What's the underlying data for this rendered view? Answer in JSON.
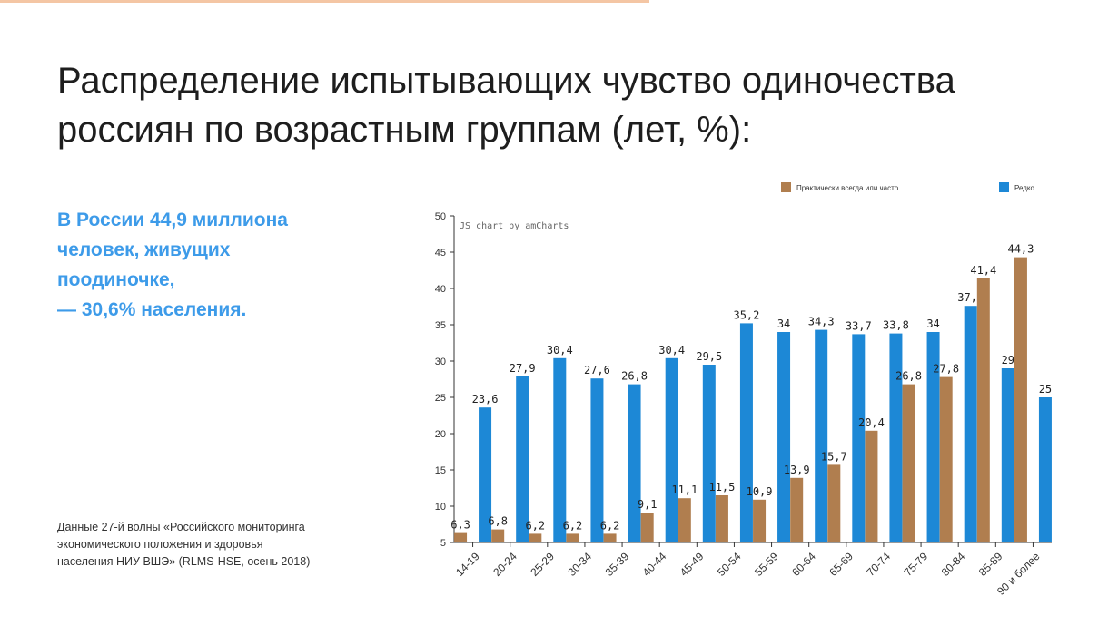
{
  "title": {
    "line1": "Распределение испытывающих чувство одиночества",
    "line2": "россиян по возрастным группам (лет, %):"
  },
  "highlight": {
    "line1": "В России 44,9 миллиона",
    "line2": "человек, живущих",
    "line3": "поодиночке,",
    "line4": "— 30,6% населения."
  },
  "source": {
    "line1": "Данные 27-й волны «Российского мониторинга",
    "line2": "экономического положения и здоровья",
    "line3": "населения НИУ ВШЭ» (RLMS-HSE, осень 2018)"
  },
  "colors": {
    "accent": "#f4c6a4",
    "highlight_text": "#3d9be9",
    "series_often": "#b07e4f",
    "series_rarely": "#1d88d6",
    "axis": "#333333"
  },
  "chart_data": {
    "type": "bar",
    "credit": "JS chart by amCharts",
    "categories": [
      "14-19",
      "20-24",
      "25-29",
      "30-34",
      "35-39",
      "40-44",
      "45-49",
      "50-54",
      "55-59",
      "60-64",
      "65-69",
      "70-74",
      "75-79",
      "80-84",
      "85-89",
      "90 и более"
    ],
    "series": [
      {
        "name": "Практически всегда или часто",
        "color": "#b07e4f",
        "values": [
          6.3,
          6.8,
          6.2,
          6.2,
          6.2,
          9.1,
          11.1,
          11.5,
          10.9,
          13.9,
          15.7,
          20.4,
          26.8,
          27.8,
          41.4,
          44.3
        ],
        "labels": [
          "6,3",
          "6,8",
          "6,2",
          "6,2",
          "6,2",
          "9,1",
          "11,1",
          "11,5",
          "10,9",
          "13,9",
          "15,7",
          "20,4",
          "26,8",
          "27,8",
          "41,4",
          "44,3"
        ]
      },
      {
        "name": "Редко",
        "color": "#1d88d6",
        "values": [
          23.6,
          27.9,
          30.4,
          27.6,
          26.8,
          30.4,
          29.5,
          35.2,
          34,
          34.3,
          33.7,
          33.8,
          34,
          37.6,
          29,
          25
        ],
        "labels": [
          "23,6",
          "27,9",
          "30,4",
          "27,6",
          "26,8",
          "30,4",
          "29,5",
          "35,2",
          "34",
          "34,3",
          "33,7",
          "33,8",
          "34",
          "37,6",
          "29",
          "25"
        ]
      }
    ],
    "y_ticks": [
      5,
      10,
      15,
      20,
      25,
      30,
      35,
      40,
      45,
      50
    ],
    "ylim": [
      5,
      50
    ],
    "grid": false,
    "legend_position": "top-right"
  }
}
